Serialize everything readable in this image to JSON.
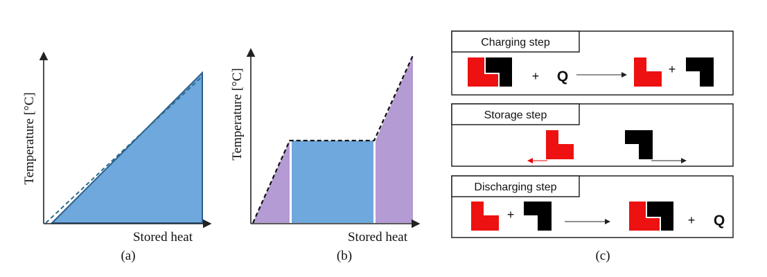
{
  "panels": {
    "a": {
      "y_label": "Temperature [°C]",
      "x_label": "Stored heat",
      "caption": "(a)"
    },
    "b": {
      "y_label": "Temperature [°C]",
      "x_label": "Stored heat",
      "caption": "(b)"
    },
    "c": {
      "caption": "(c)",
      "steps": [
        {
          "title": "Charging step",
          "symbols": [
            "+",
            "Q",
            "+"
          ]
        },
        {
          "title": "Storage step"
        },
        {
          "title": "Discharging step",
          "symbols": [
            "+",
            "+",
            "Q"
          ]
        }
      ]
    }
  }
}
